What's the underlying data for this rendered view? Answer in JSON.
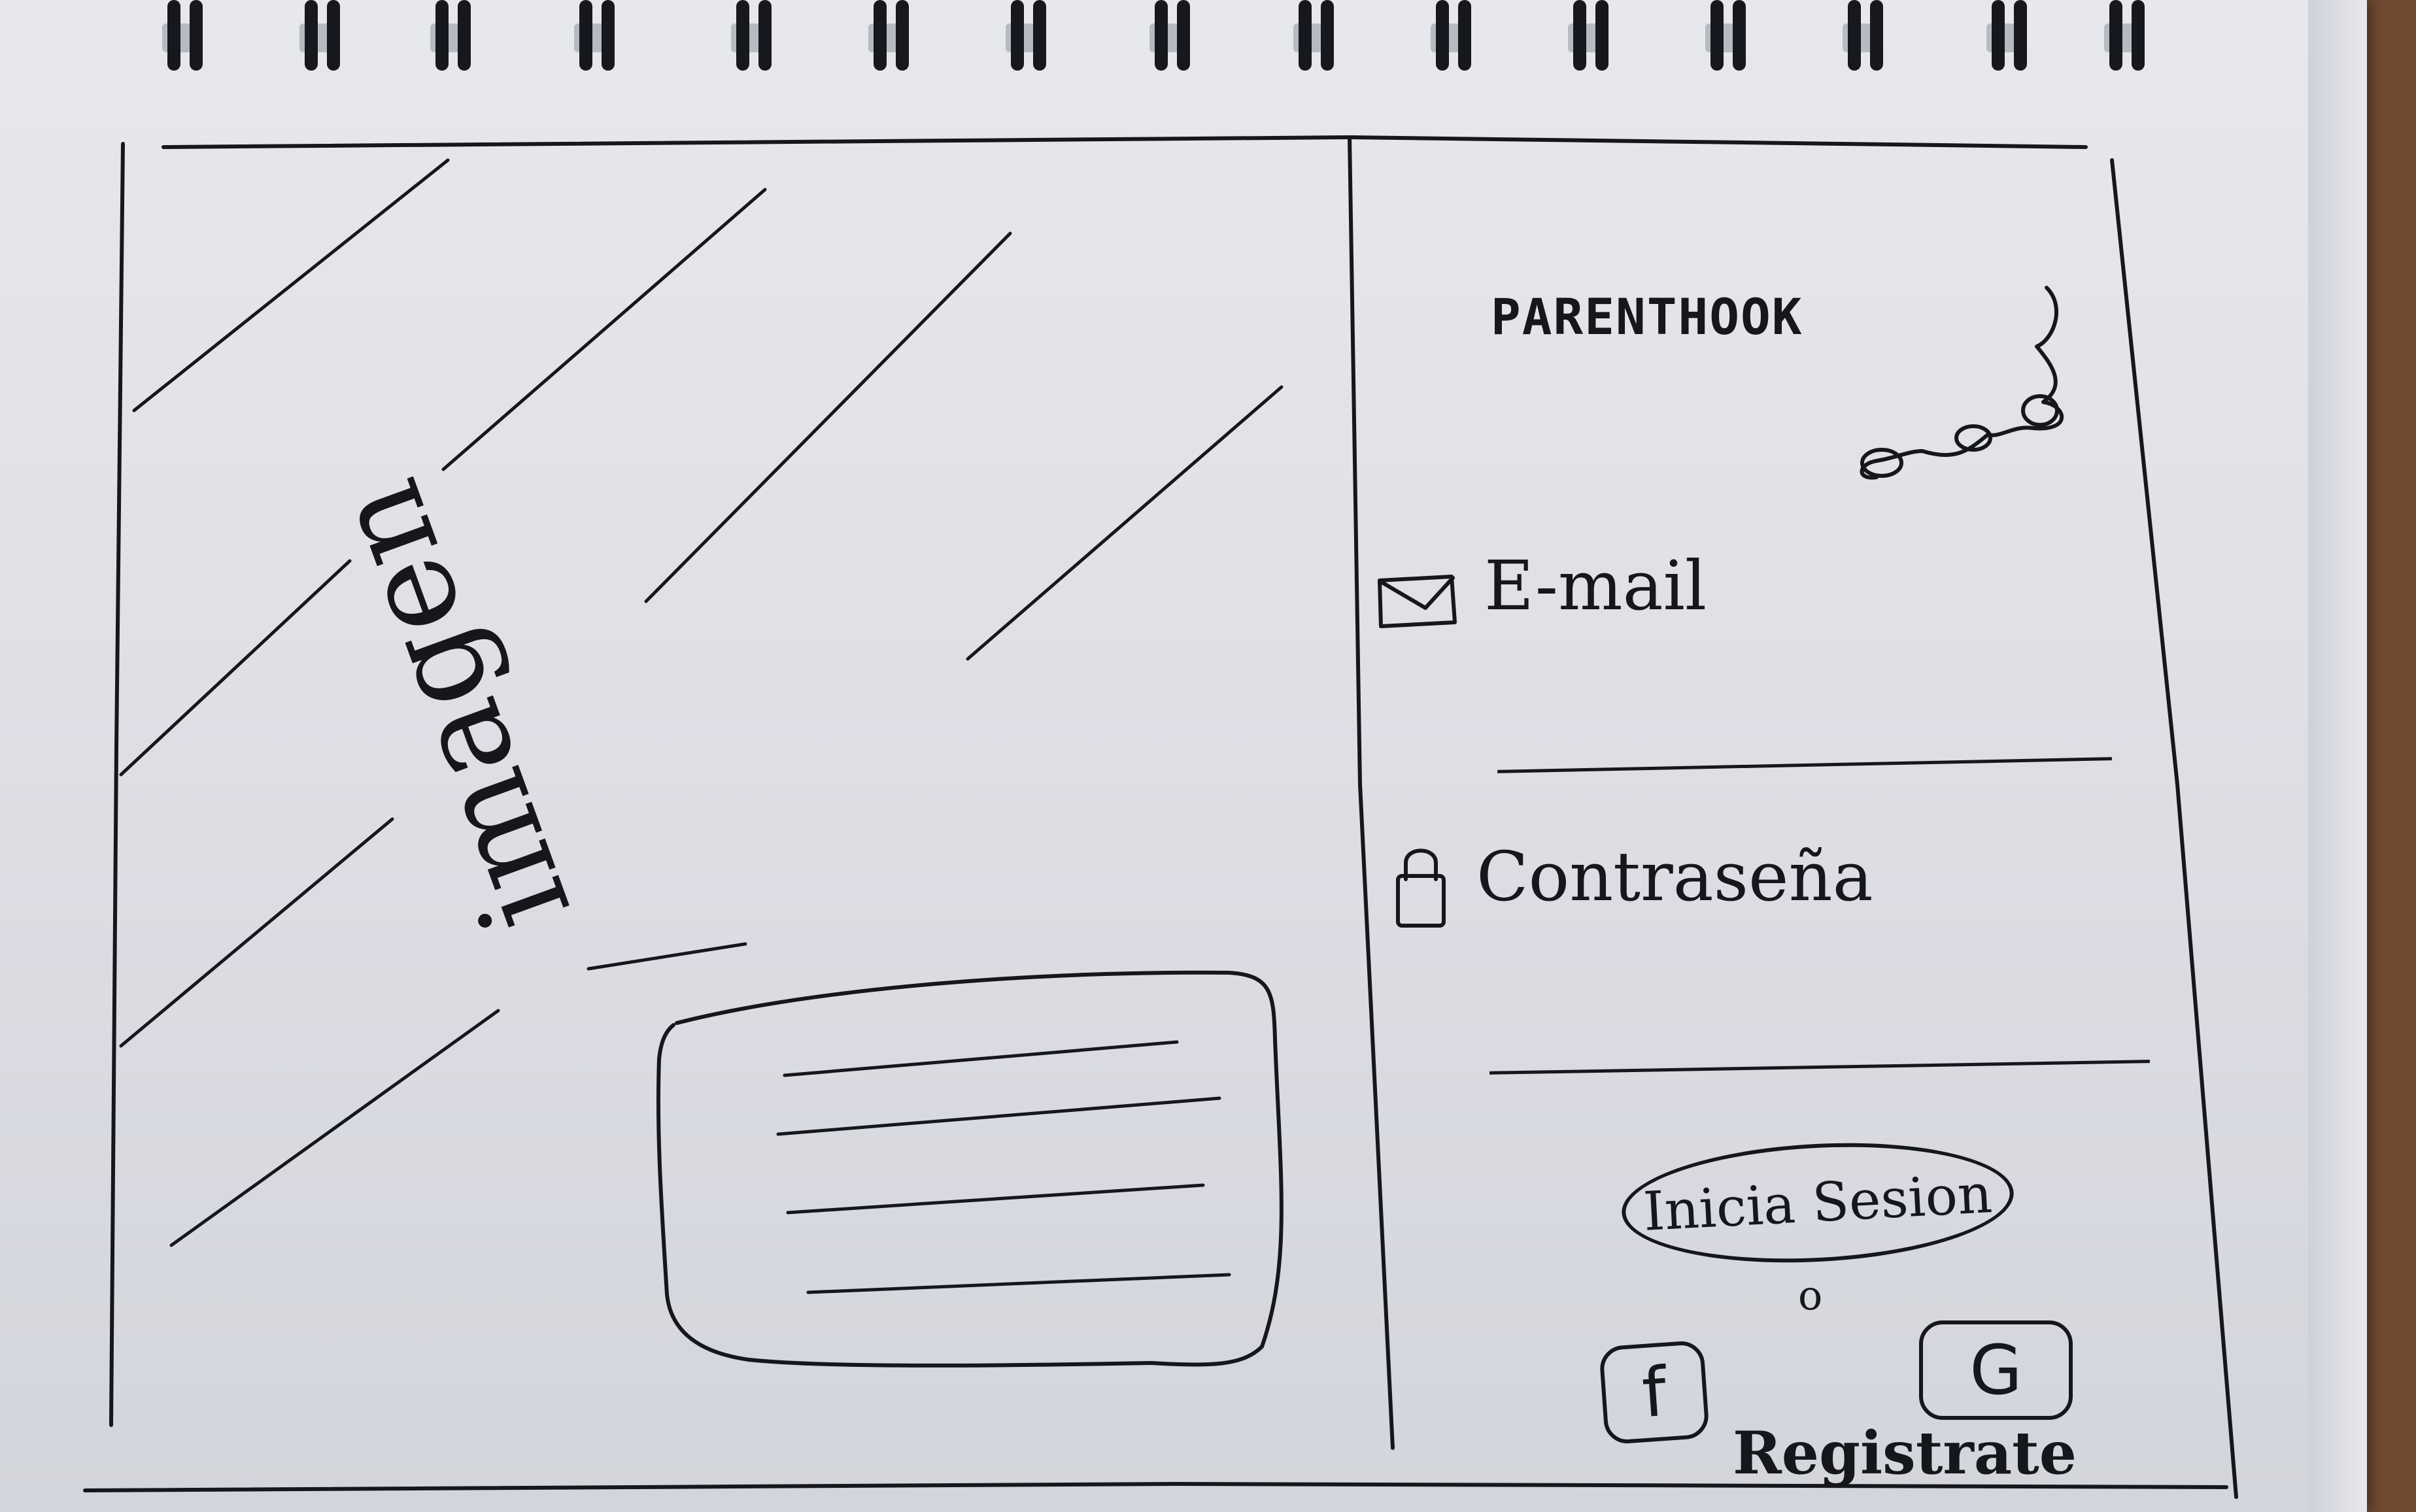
{
  "brand": {
    "name": "PARENTHOOK"
  },
  "image_panel": {
    "label": "imagen"
  },
  "login": {
    "email_label": "E-mail",
    "password_label": "Contraseña",
    "submit_label": "Inicia Sesion",
    "or_text": "o",
    "facebook_label": "f",
    "google_label": "G",
    "register_label": "Registrate"
  },
  "icons": {
    "email": "envelope-icon",
    "password": "lock-icon",
    "brand": "hook-icon"
  },
  "colors": {
    "ink": "#15171c",
    "paper": "#e2e3e8",
    "spiral": "#16181d"
  }
}
